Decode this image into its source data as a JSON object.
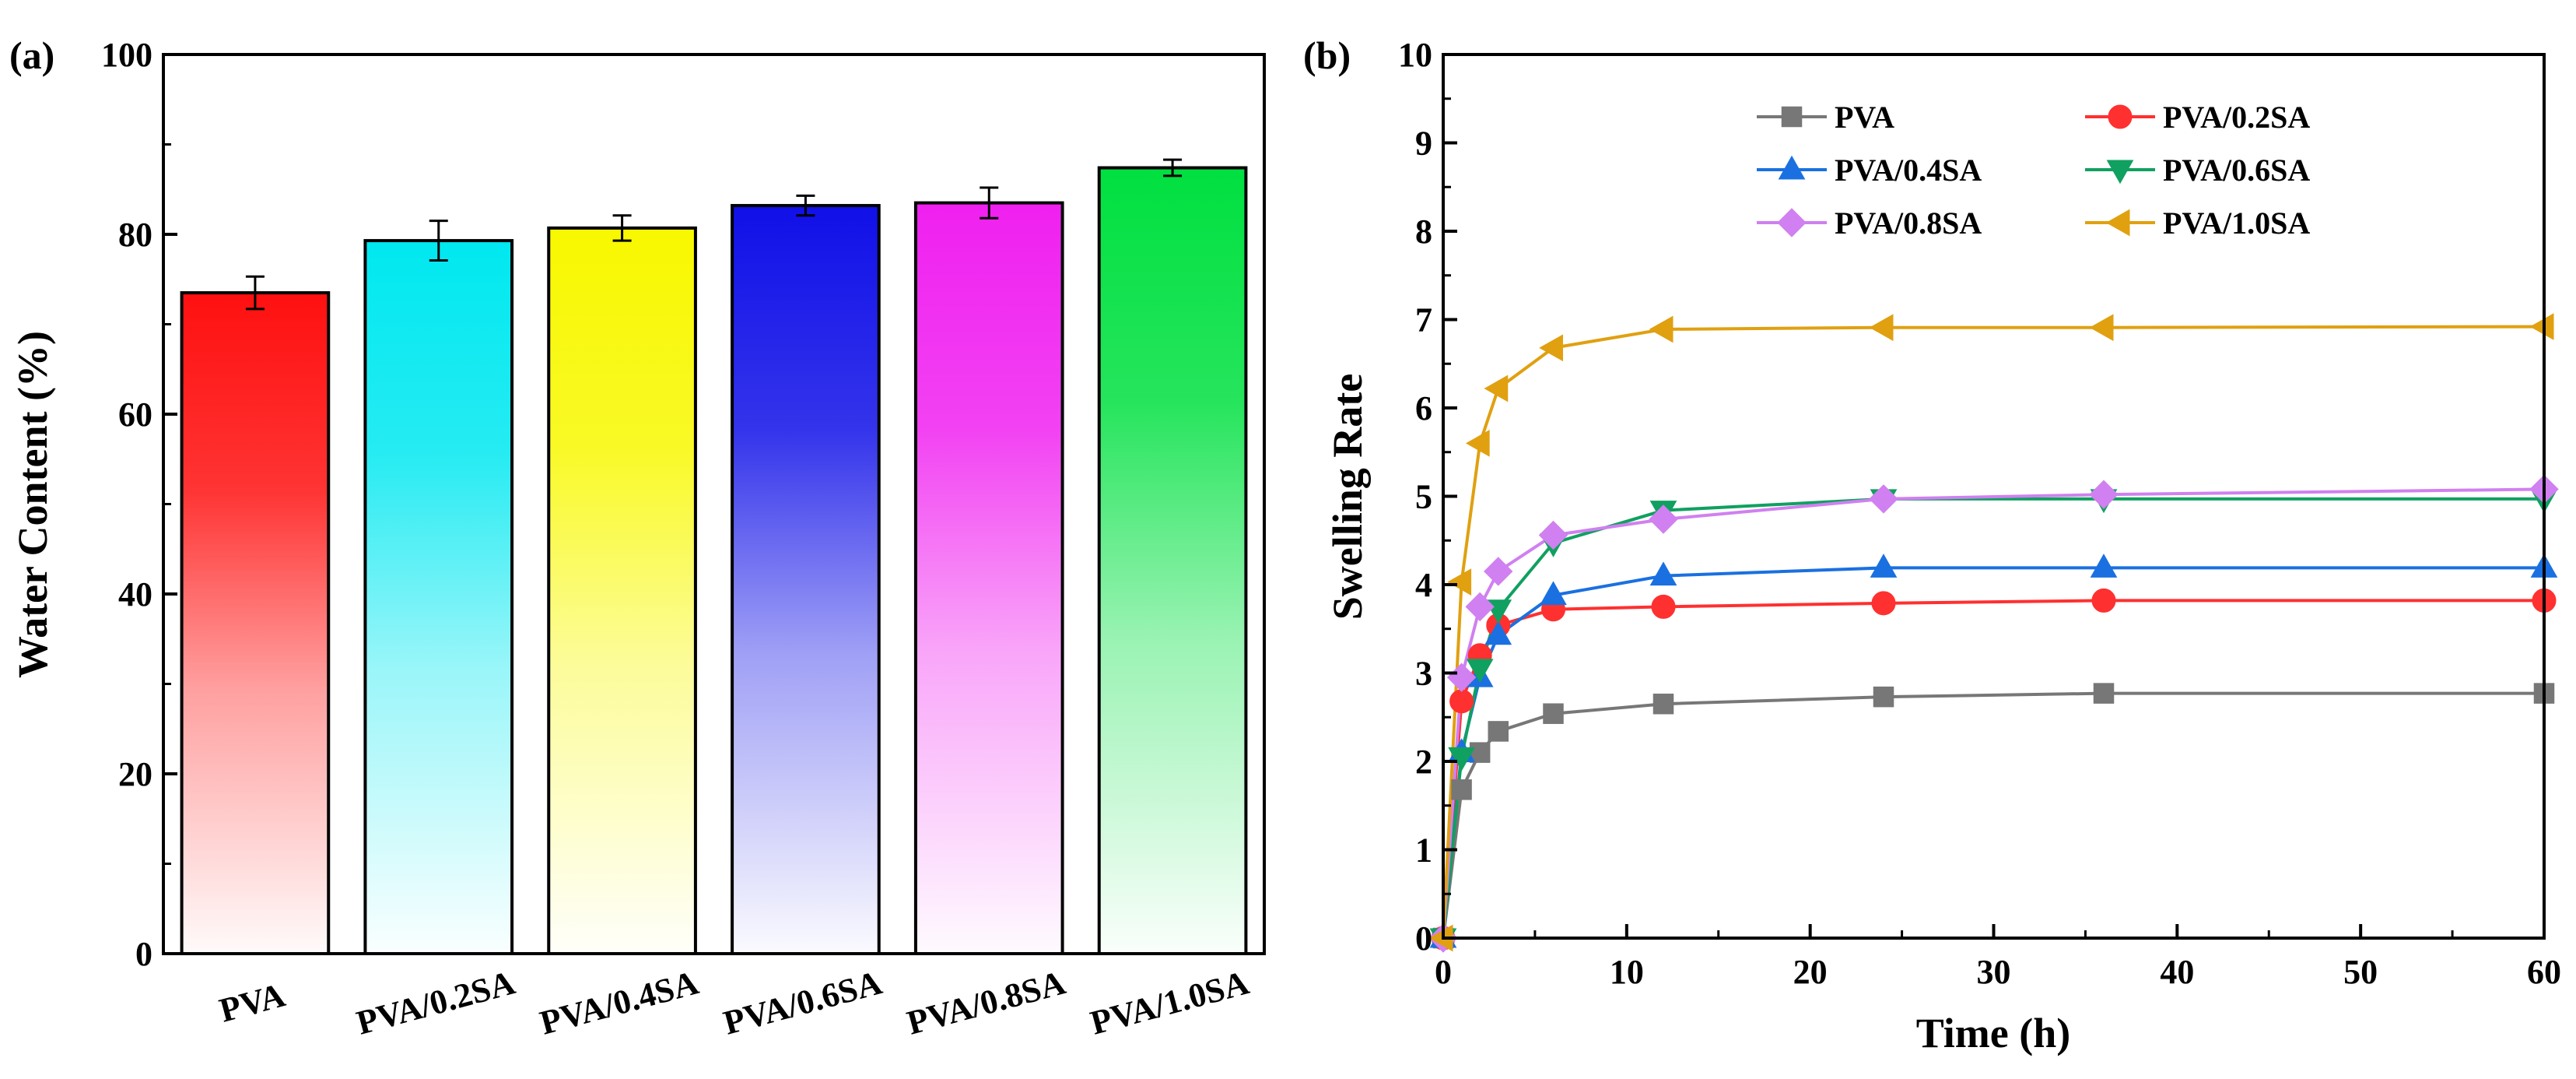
{
  "panels": {
    "a": {
      "label": "(a)"
    },
    "b": {
      "label": "(b)"
    }
  },
  "chart_data": [
    {
      "type": "bar",
      "panel": "(a)",
      "title": "",
      "xlabel": "",
      "ylabel": "Water Content (%)",
      "ylim": [
        0,
        100
      ],
      "yticks": [
        "0",
        "20",
        "40",
        "60",
        "80",
        "100"
      ],
      "categories": [
        "PVA",
        "PVA/0.2SA",
        "PVA/0.4SA",
        "PVA/0.6SA",
        "PVA/0.8SA",
        "PVA/1.0SA"
      ],
      "values": [
        73.5,
        79.3,
        80.7,
        83.2,
        83.5,
        87.4
      ],
      "errors": [
        1.8,
        2.2,
        1.4,
        1.1,
        1.7,
        0.9
      ],
      "colors": [
        "#ff1010",
        "#00e8f0",
        "#f8f800",
        "#1010e8",
        "#f020f0",
        "#00e040"
      ],
      "legend": "none"
    },
    {
      "type": "line",
      "panel": "(b)",
      "title": "",
      "xlabel": "Time (h)",
      "ylabel": "Swelling Rate",
      "xlim": [
        0,
        60
      ],
      "ylim": [
        0,
        10
      ],
      "xticks": [
        "0",
        "10",
        "20",
        "30",
        "40",
        "50",
        "60"
      ],
      "yticks": [
        "0",
        "1",
        "2",
        "3",
        "4",
        "5",
        "6",
        "7",
        "8",
        "9",
        "10"
      ],
      "legend_position": "top",
      "x": [
        0,
        1,
        2,
        3,
        6,
        12,
        24,
        36,
        60
      ],
      "series": [
        {
          "name": "PVA",
          "color": "#777777",
          "marker": "square",
          "values": [
            0,
            1.68,
            2.1,
            2.34,
            2.54,
            2.65,
            2.73,
            2.77,
            2.77
          ]
        },
        {
          "name": "PVA/0.2SA",
          "color": "#ff3030",
          "marker": "circle",
          "values": [
            0,
            2.68,
            3.2,
            3.54,
            3.72,
            3.75,
            3.79,
            3.82,
            3.82
          ]
        },
        {
          "name": "PVA/0.4SA",
          "color": "#1a70e0",
          "marker": "triangle-up",
          "values": [
            0,
            2.1,
            2.95,
            3.43,
            3.88,
            4.1,
            4.19,
            4.19,
            4.19
          ]
        },
        {
          "name": "PVA/0.6SA",
          "color": "#10a060",
          "marker": "triangle-down",
          "values": [
            0,
            2.05,
            3.05,
            3.72,
            4.47,
            4.84,
            4.97,
            4.97,
            4.97
          ]
        },
        {
          "name": "PVA/0.8SA",
          "color": "#d080f0",
          "marker": "diamond",
          "values": [
            0,
            2.95,
            3.75,
            4.15,
            4.56,
            4.74,
            4.97,
            5.02,
            5.08
          ]
        },
        {
          "name": "PVA/1.0SA",
          "color": "#e0a010",
          "marker": "triangle-left",
          "values": [
            0,
            4.03,
            5.6,
            6.22,
            6.68,
            6.89,
            6.91,
            6.91,
            6.92
          ]
        }
      ]
    }
  ]
}
